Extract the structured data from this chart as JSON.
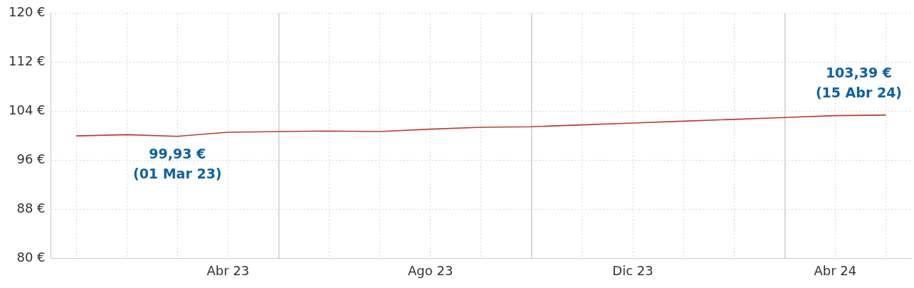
{
  "chart_data": {
    "type": "line",
    "categories": [
      null,
      null,
      null,
      "Abr 23",
      null,
      null,
      null,
      "Ago 23",
      null,
      null,
      null,
      "Dic 23",
      null,
      null,
      null,
      "Abr 24",
      null
    ],
    "series": [
      {
        "color": "#c0392b",
        "values": [
          100.0,
          100.2,
          99.93,
          100.6,
          100.7,
          100.8,
          100.7,
          101.1,
          101.4,
          101.5,
          101.8,
          102.1,
          102.4,
          102.7,
          103.0,
          103.3,
          103.39
        ]
      }
    ],
    "ylim": [
      80,
      120
    ],
    "yticks": [
      {
        "value": 80,
        "label": "80 €"
      },
      {
        "value": 88,
        "label": "88 €"
      },
      {
        "value": 96,
        "label": "96 €"
      },
      {
        "value": 104,
        "label": "104 €"
      },
      {
        "value": 112,
        "label": "112 €"
      },
      {
        "value": 120,
        "label": "120 €"
      }
    ],
    "annotations": [
      "99,93 €\n(01 Mar 23)",
      "103,39 €\n(15 Abr 24)"
    ],
    "grid": true,
    "marker": "none",
    "line_style": "solid",
    "legend": false
  }
}
